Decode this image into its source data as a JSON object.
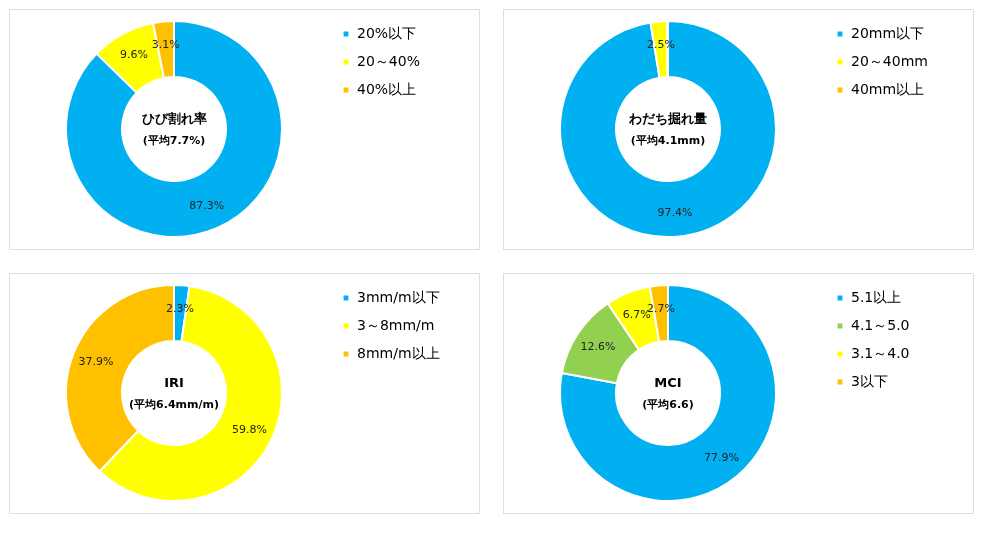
{
  "chart_data": [
    {
      "type": "donut",
      "title": "ひび割れ率",
      "subtitle": "(平均7.7%)",
      "categories": [
        "20%以下",
        "20～40%",
        "40%以上"
      ],
      "values": [
        87.3,
        9.6,
        3.1
      ],
      "colors": [
        "#00b0f0",
        "#ffff00",
        "#ffc000"
      ],
      "value_labels": [
        "87.3%",
        "9.6%",
        "3.1%"
      ],
      "legend": "right"
    },
    {
      "type": "donut",
      "title": "わだち掘れ量",
      "subtitle": "(平均4.1mm)",
      "categories": [
        "20mm以下",
        "20～40mm",
        "40mm以上"
      ],
      "values": [
        97.4,
        2.5,
        0.1
      ],
      "colors": [
        "#00b0f0",
        "#ffff00",
        "#ffc000"
      ],
      "value_labels": [
        "97.4%",
        "2.5%",
        null
      ],
      "legend": "right"
    },
    {
      "type": "donut",
      "title": "IRI",
      "subtitle": "(平均6.4mm/m)",
      "categories": [
        "3mm/m以下",
        "3～8mm/m",
        "8mm/m以上"
      ],
      "values": [
        2.3,
        59.8,
        37.9
      ],
      "colors": [
        "#00b0f0",
        "#ffff00",
        "#ffc000"
      ],
      "value_labels": [
        "2.3%",
        "59.8%",
        "37.9%"
      ],
      "legend": "right"
    },
    {
      "type": "donut",
      "title": "MCI",
      "subtitle": "(平均6.6)",
      "categories": [
        "5.1以上",
        "4.1～5.0",
        "3.1～4.0",
        "3以下"
      ],
      "values": [
        77.9,
        12.6,
        6.7,
        2.7
      ],
      "colors": [
        "#00b0f0",
        "#92d050",
        "#ffff00",
        "#ffc000"
      ],
      "value_labels": [
        "77.9%",
        "12.6%",
        "6.7%",
        "2.7%"
      ],
      "legend": "right"
    }
  ]
}
